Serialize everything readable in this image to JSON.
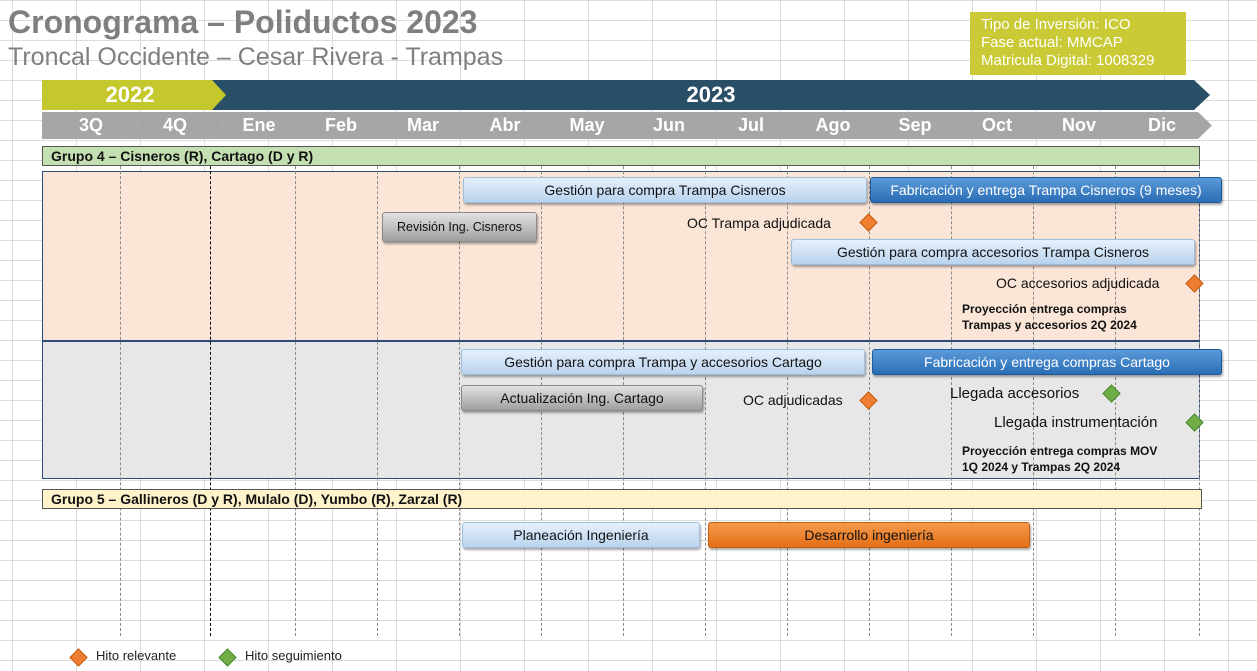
{
  "header": {
    "title": "Cronograma – Poliductos 2023",
    "subtitle": "Troncal Occidente – Cesar Rivera - Trampas"
  },
  "info_box": {
    "line1": "Tipo de Inversión: ICO",
    "line2": "Fase actual: MMCAP",
    "line3": "Matricula Digital: 1008329"
  },
  "timeline": {
    "year_2022": "2022",
    "year_2023": "2023",
    "periods": [
      "3Q",
      "4Q",
      "Ene",
      "Feb",
      "Mar",
      "Abr",
      "May",
      "Jun",
      "Jul",
      "Ago",
      "Sep",
      "Oct",
      "Nov",
      "Dic"
    ]
  },
  "groups": {
    "g4": "Grupo 4 – Cisneros (R), Cartago (D y R)",
    "g5": "Grupo 5 – Gallineros (D y R), Mulalo (D), Yumbo (R), Zarzal (R)"
  },
  "bars": {
    "gestion_trampa_cisneros": "Gestión para compra Trampa Cisneros",
    "fabricacion_trampa_cisneros": "Fabricación y entrega Trampa Cisneros (9 meses)",
    "revision_ing_cisneros": "Revisión Ing. Cisneros",
    "gestion_accesorios_cisneros": "Gestión para compra accesorios Trampa Cisneros",
    "gestion_cartago": "Gestión para compra Trampa y accesorios Cartago",
    "fabricacion_cartago": "Fabricación y entrega compras Cartago",
    "actualizacion_cartago": "Actualización Ing. Cartago",
    "planeacion_ingenieria": "Planeación Ingeniería",
    "desarrollo_ingenieria": "Desarrollo ingeniería"
  },
  "milestones": {
    "oc_trampa": "OC Trampa adjudicada",
    "oc_accesorios": "OC accesorios adjudicada",
    "oc_adjudicadas": "OC adjudicadas",
    "llegada_accesorios": "Llegada accesorios",
    "llegada_instrumentacion": "Llegada instrumentación"
  },
  "projections": {
    "p1_line1": "Proyección entrega compras",
    "p1_line2": "Trampas y accesorios 2Q 2024",
    "p2_line1": "Proyección entrega compras MOV",
    "p2_line2": "1Q 2024 y Trampas 2Q 2024"
  },
  "legend": {
    "relevante": "Hito relevante",
    "seguimiento": "Hito seguimiento"
  },
  "colors": {
    "relevante": "#ef7d32",
    "seguimiento": "#6fae47",
    "year_2022": "#c4c82d",
    "year_2023": "#284f66"
  }
}
